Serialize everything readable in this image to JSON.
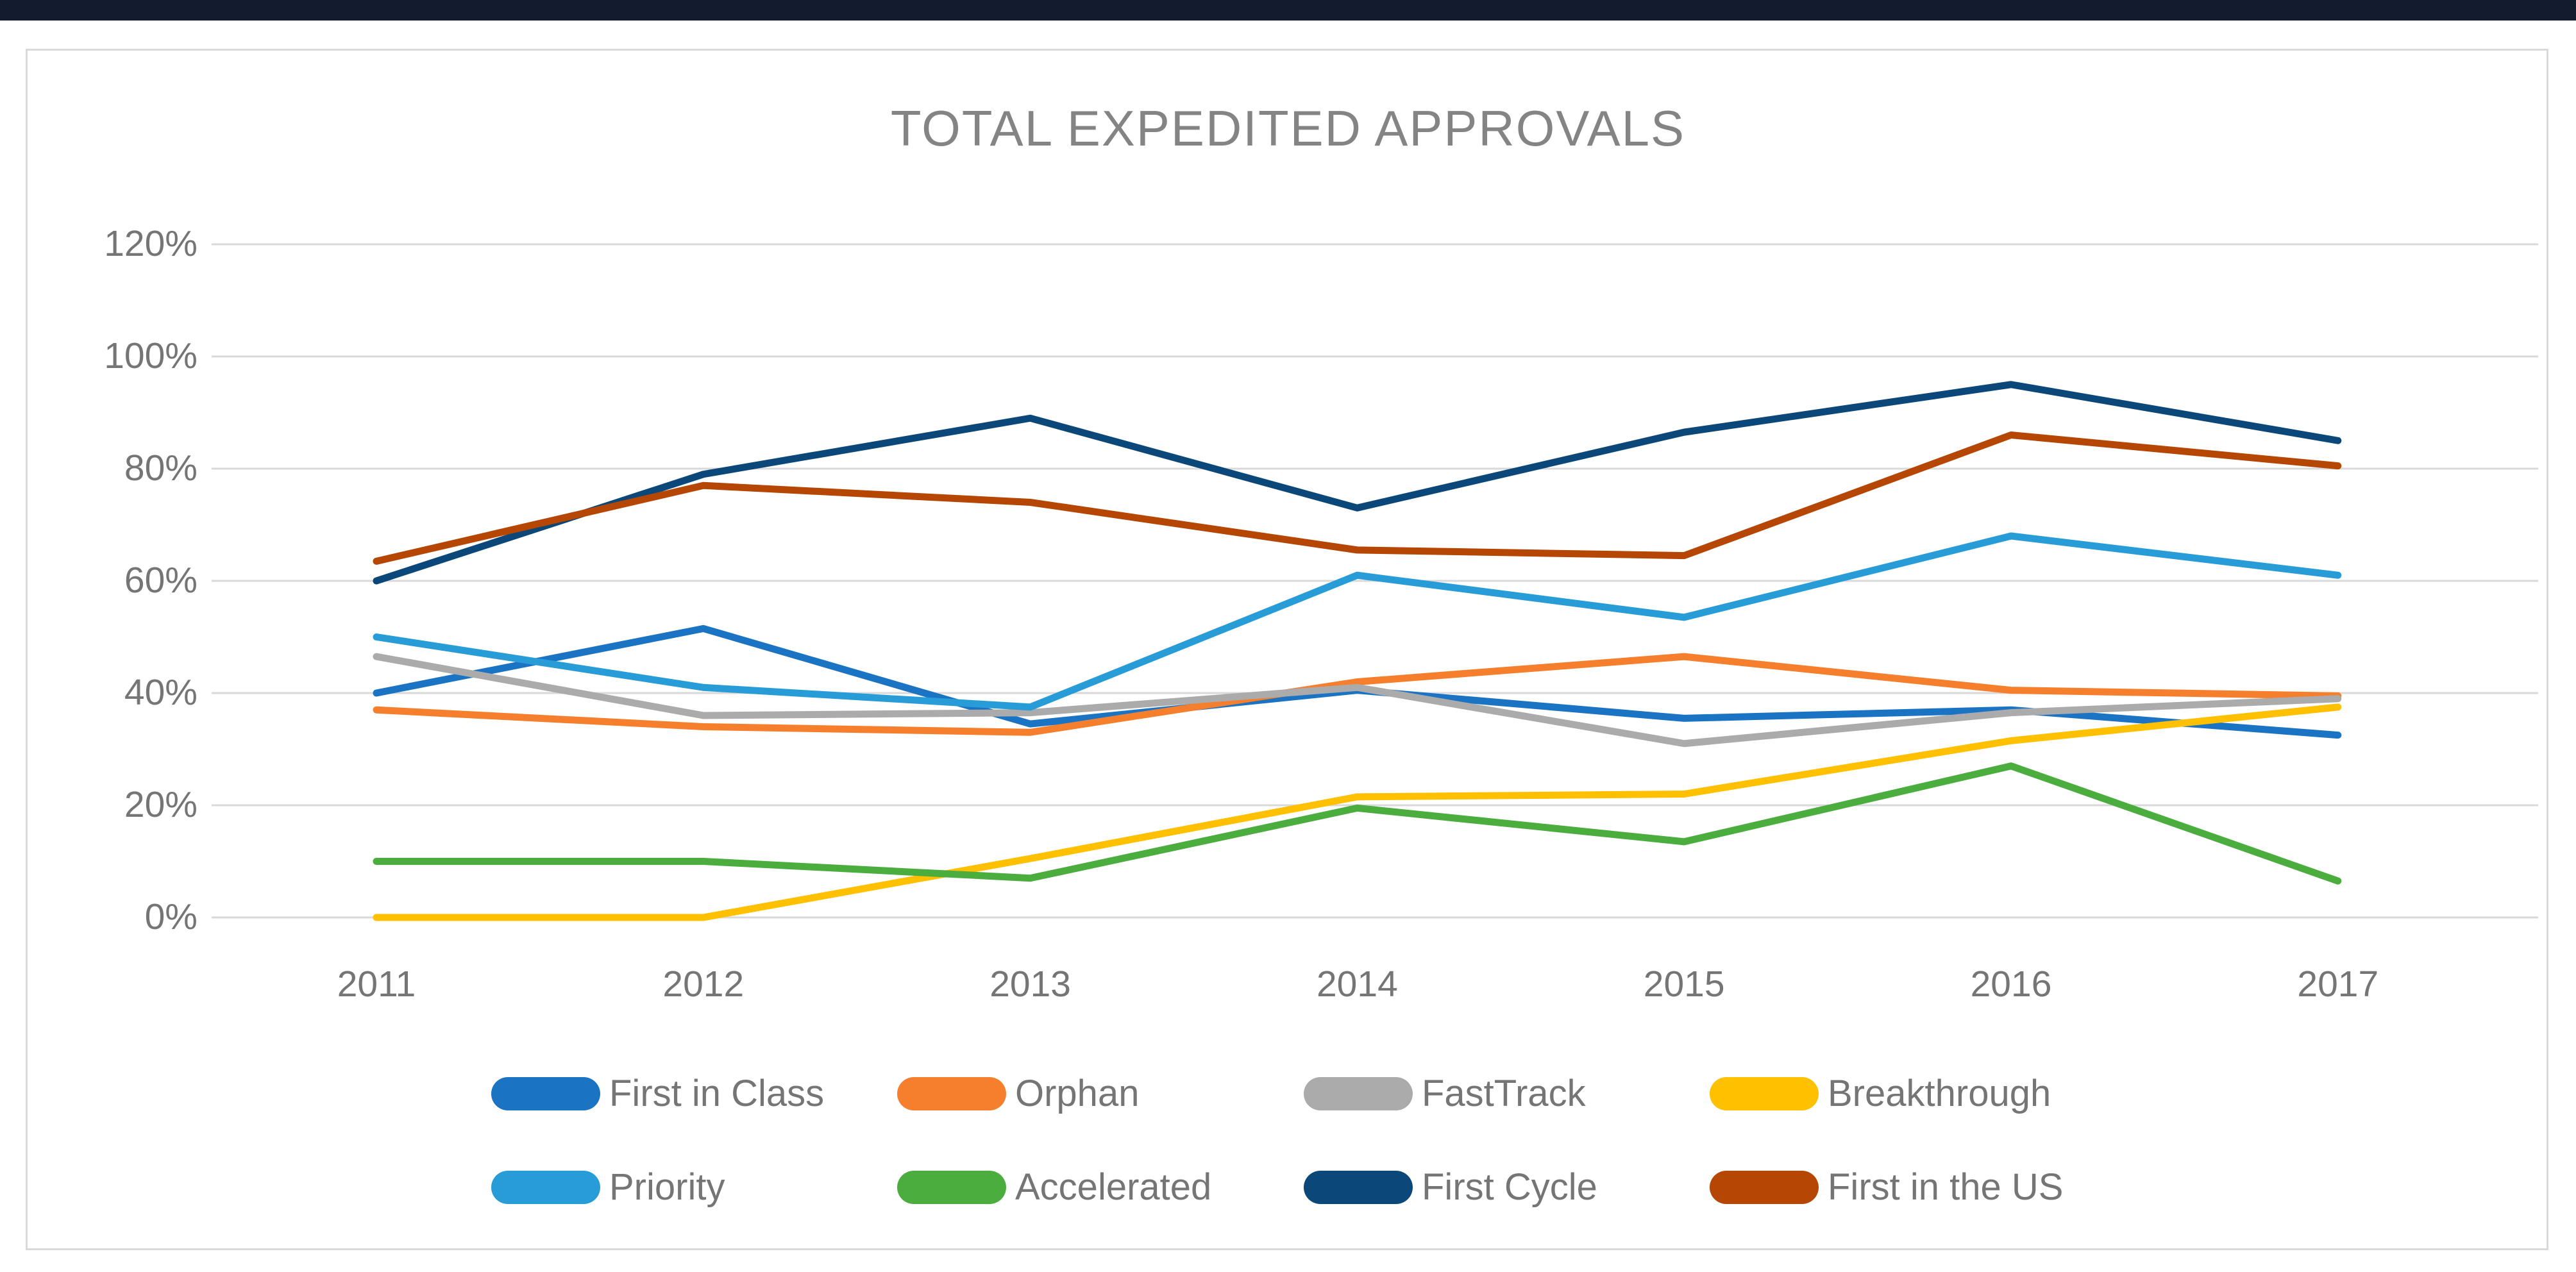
{
  "page": {
    "top_bar_color": "#131c2e",
    "panel_border_color": "#d9d9d9",
    "background_color": "#ffffff"
  },
  "chart_data": {
    "type": "line",
    "title": "TOTAL EXPEDITED APPROVALS",
    "title_color": "#848484",
    "categories": [
      "2011",
      "2012",
      "2013",
      "2014",
      "2015",
      "2016",
      "2017"
    ],
    "xlabel": "",
    "ylabel": "",
    "ylim": [
      0,
      120
    ],
    "y_tick_step": 20,
    "y_tick_labels_top_to_bottom": [
      "120%",
      "100%",
      "80%",
      "60%",
      "40%",
      "20%",
      "0%"
    ],
    "grid": true,
    "gridline_color": "#d9d9d9",
    "axis_text_color": "#757575",
    "legend_position": "bottom",
    "legend_rows": 2,
    "series": [
      {
        "name": "First in Class",
        "color": "#1b73c4",
        "values": [
          40,
          51.5,
          34.5,
          40.5,
          35.5,
          37,
          32.5
        ]
      },
      {
        "name": "Orphan",
        "color": "#f57f2d",
        "values": [
          37,
          34,
          33,
          42,
          46.5,
          40.5,
          39.5
        ]
      },
      {
        "name": "FastTrack",
        "color": "#ababab",
        "values": [
          46.5,
          36,
          36.5,
          41,
          31,
          36.5,
          39
        ]
      },
      {
        "name": "Breakthrough",
        "color": "#ffc000",
        "values": [
          0,
          0,
          10.5,
          21.5,
          22,
          31.5,
          37.5
        ]
      },
      {
        "name": "Priority",
        "color": "#289cd7",
        "values": [
          50,
          41,
          37.5,
          61,
          53.5,
          68,
          61
        ]
      },
      {
        "name": "Accelerated",
        "color": "#4aad3e",
        "values": [
          10,
          10,
          7,
          19.5,
          13.5,
          27,
          6.5
        ]
      },
      {
        "name": "First Cycle",
        "color": "#0b4778",
        "values": [
          60,
          79,
          89,
          73,
          86.5,
          95,
          85
        ]
      },
      {
        "name": "First in the US",
        "color": "#b54603",
        "values": [
          63.5,
          77,
          74,
          65.5,
          64.5,
          86,
          80.5
        ]
      }
    ]
  }
}
